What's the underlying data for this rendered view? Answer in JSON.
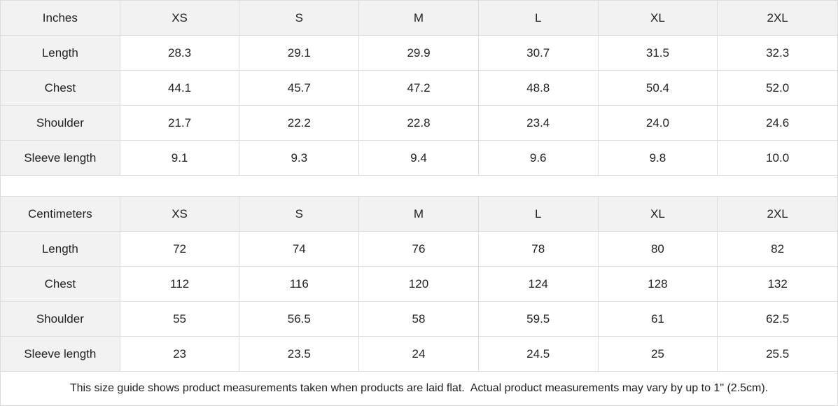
{
  "sizes": [
    "XS",
    "S",
    "M",
    "L",
    "XL",
    "2XL"
  ],
  "tables": [
    {
      "unit": "Inches",
      "rows": [
        {
          "label": "Length",
          "values": [
            "28.3",
            "29.1",
            "29.9",
            "30.7",
            "31.5",
            "32.3"
          ]
        },
        {
          "label": "Chest",
          "values": [
            "44.1",
            "45.7",
            "47.2",
            "48.8",
            "50.4",
            "52.0"
          ]
        },
        {
          "label": "Shoulder",
          "values": [
            "21.7",
            "22.2",
            "22.8",
            "23.4",
            "24.0",
            "24.6"
          ]
        },
        {
          "label": "Sleeve length",
          "values": [
            "9.1",
            "9.3",
            "9.4",
            "9.6",
            "9.8",
            "10.0"
          ]
        }
      ]
    },
    {
      "unit": "Centimeters",
      "rows": [
        {
          "label": "Length",
          "values": [
            "72",
            "74",
            "76",
            "78",
            "80",
            "82"
          ]
        },
        {
          "label": "Chest",
          "values": [
            "112",
            "116",
            "120",
            "124",
            "128",
            "132"
          ]
        },
        {
          "label": "Shoulder",
          "values": [
            "55",
            "56.5",
            "58",
            "59.5",
            "61",
            "62.5"
          ]
        },
        {
          "label": "Sleeve length",
          "values": [
            "23",
            "23.5",
            "24",
            "24.5",
            "25",
            "25.5"
          ]
        }
      ]
    }
  ],
  "note": "This size guide shows product measurements taken when products are laid flat.  Actual product measurements may vary by up to 1\" (2.5cm)."
}
